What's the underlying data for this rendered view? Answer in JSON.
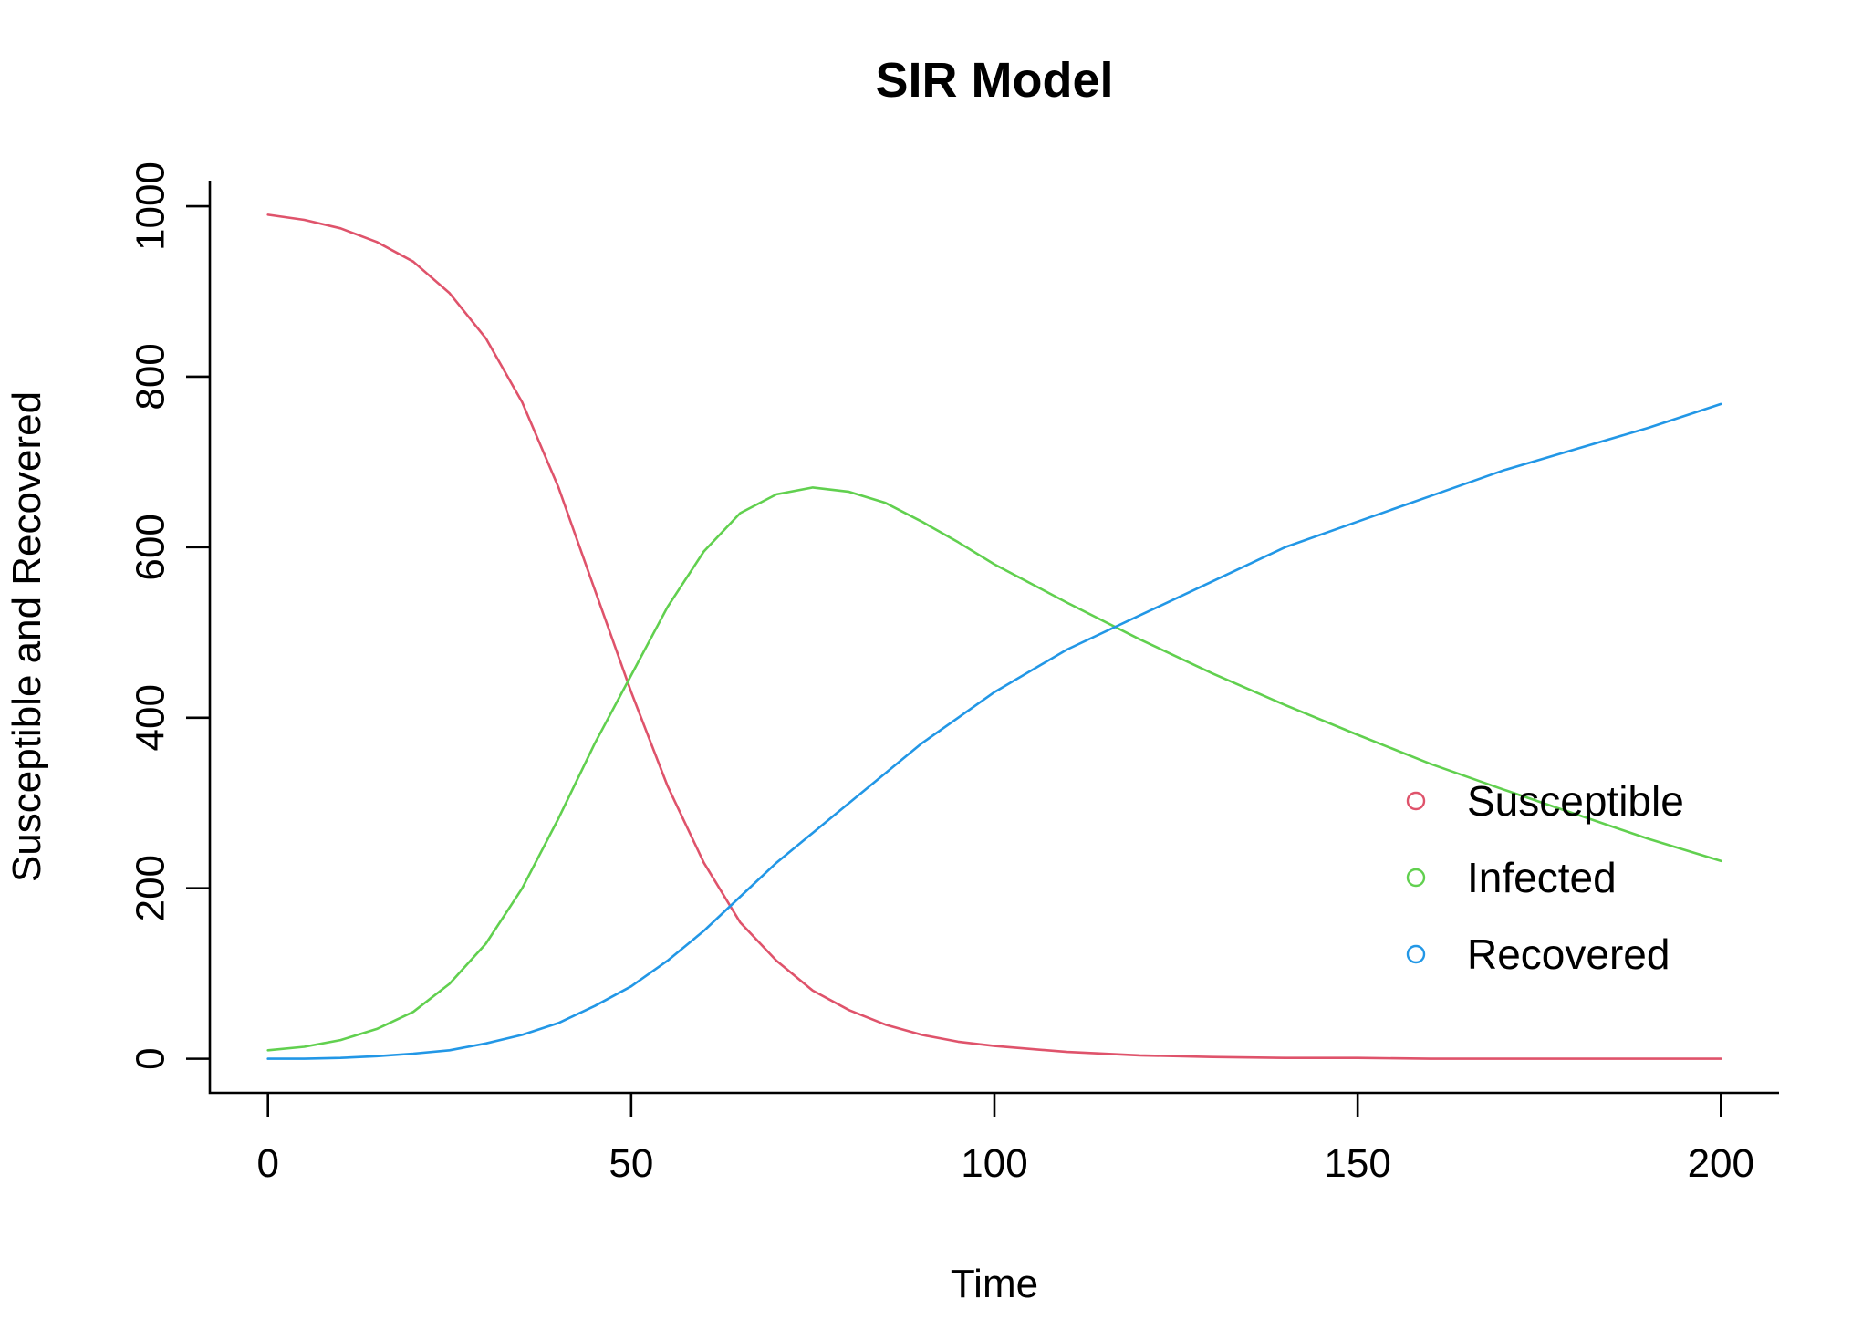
{
  "chart_data": {
    "type": "line",
    "title": "SIR Model",
    "xlabel": "Time",
    "ylabel": "Susceptible and Recovered",
    "xlim": [
      -8,
      208
    ],
    "ylim": [
      -40,
      1030
    ],
    "x_ticks": [
      0,
      50,
      100,
      150,
      200
    ],
    "y_ticks": [
      0,
      200,
      400,
      600,
      800,
      1000
    ],
    "grid": false,
    "legend_position": "right",
    "x": [
      0,
      5,
      10,
      15,
      20,
      25,
      30,
      35,
      40,
      45,
      50,
      55,
      60,
      65,
      70,
      75,
      80,
      85,
      90,
      95,
      100,
      110,
      120,
      130,
      140,
      150,
      160,
      170,
      180,
      190,
      200
    ],
    "series": [
      {
        "name": "Susceptible",
        "color": "#DF536B",
        "values": [
          990,
          984,
          974,
          958,
          935,
          898,
          845,
          770,
          670,
          550,
          430,
          320,
          230,
          160,
          115,
          80,
          57,
          40,
          28,
          20,
          15,
          8,
          4,
          2,
          1,
          1,
          0,
          0,
          0,
          0,
          0
        ]
      },
      {
        "name": "Infected",
        "color": "#61D04F",
        "values": [
          10,
          14,
          22,
          35,
          55,
          88,
          135,
          200,
          282,
          370,
          450,
          530,
          595,
          640,
          662,
          670,
          665,
          652,
          630,
          606,
          580,
          535,
          492,
          452,
          415,
          380,
          346,
          316,
          287,
          258,
          232
        ]
      },
      {
        "name": "Recovered",
        "color": "#2297E6",
        "values": [
          0,
          0,
          1,
          3,
          6,
          10,
          18,
          28,
          42,
          62,
          85,
          115,
          150,
          190,
          230,
          265,
          300,
          335,
          370,
          400,
          430,
          480,
          520,
          560,
          600,
          630,
          660,
          690,
          715,
          740,
          768
        ]
      }
    ]
  }
}
